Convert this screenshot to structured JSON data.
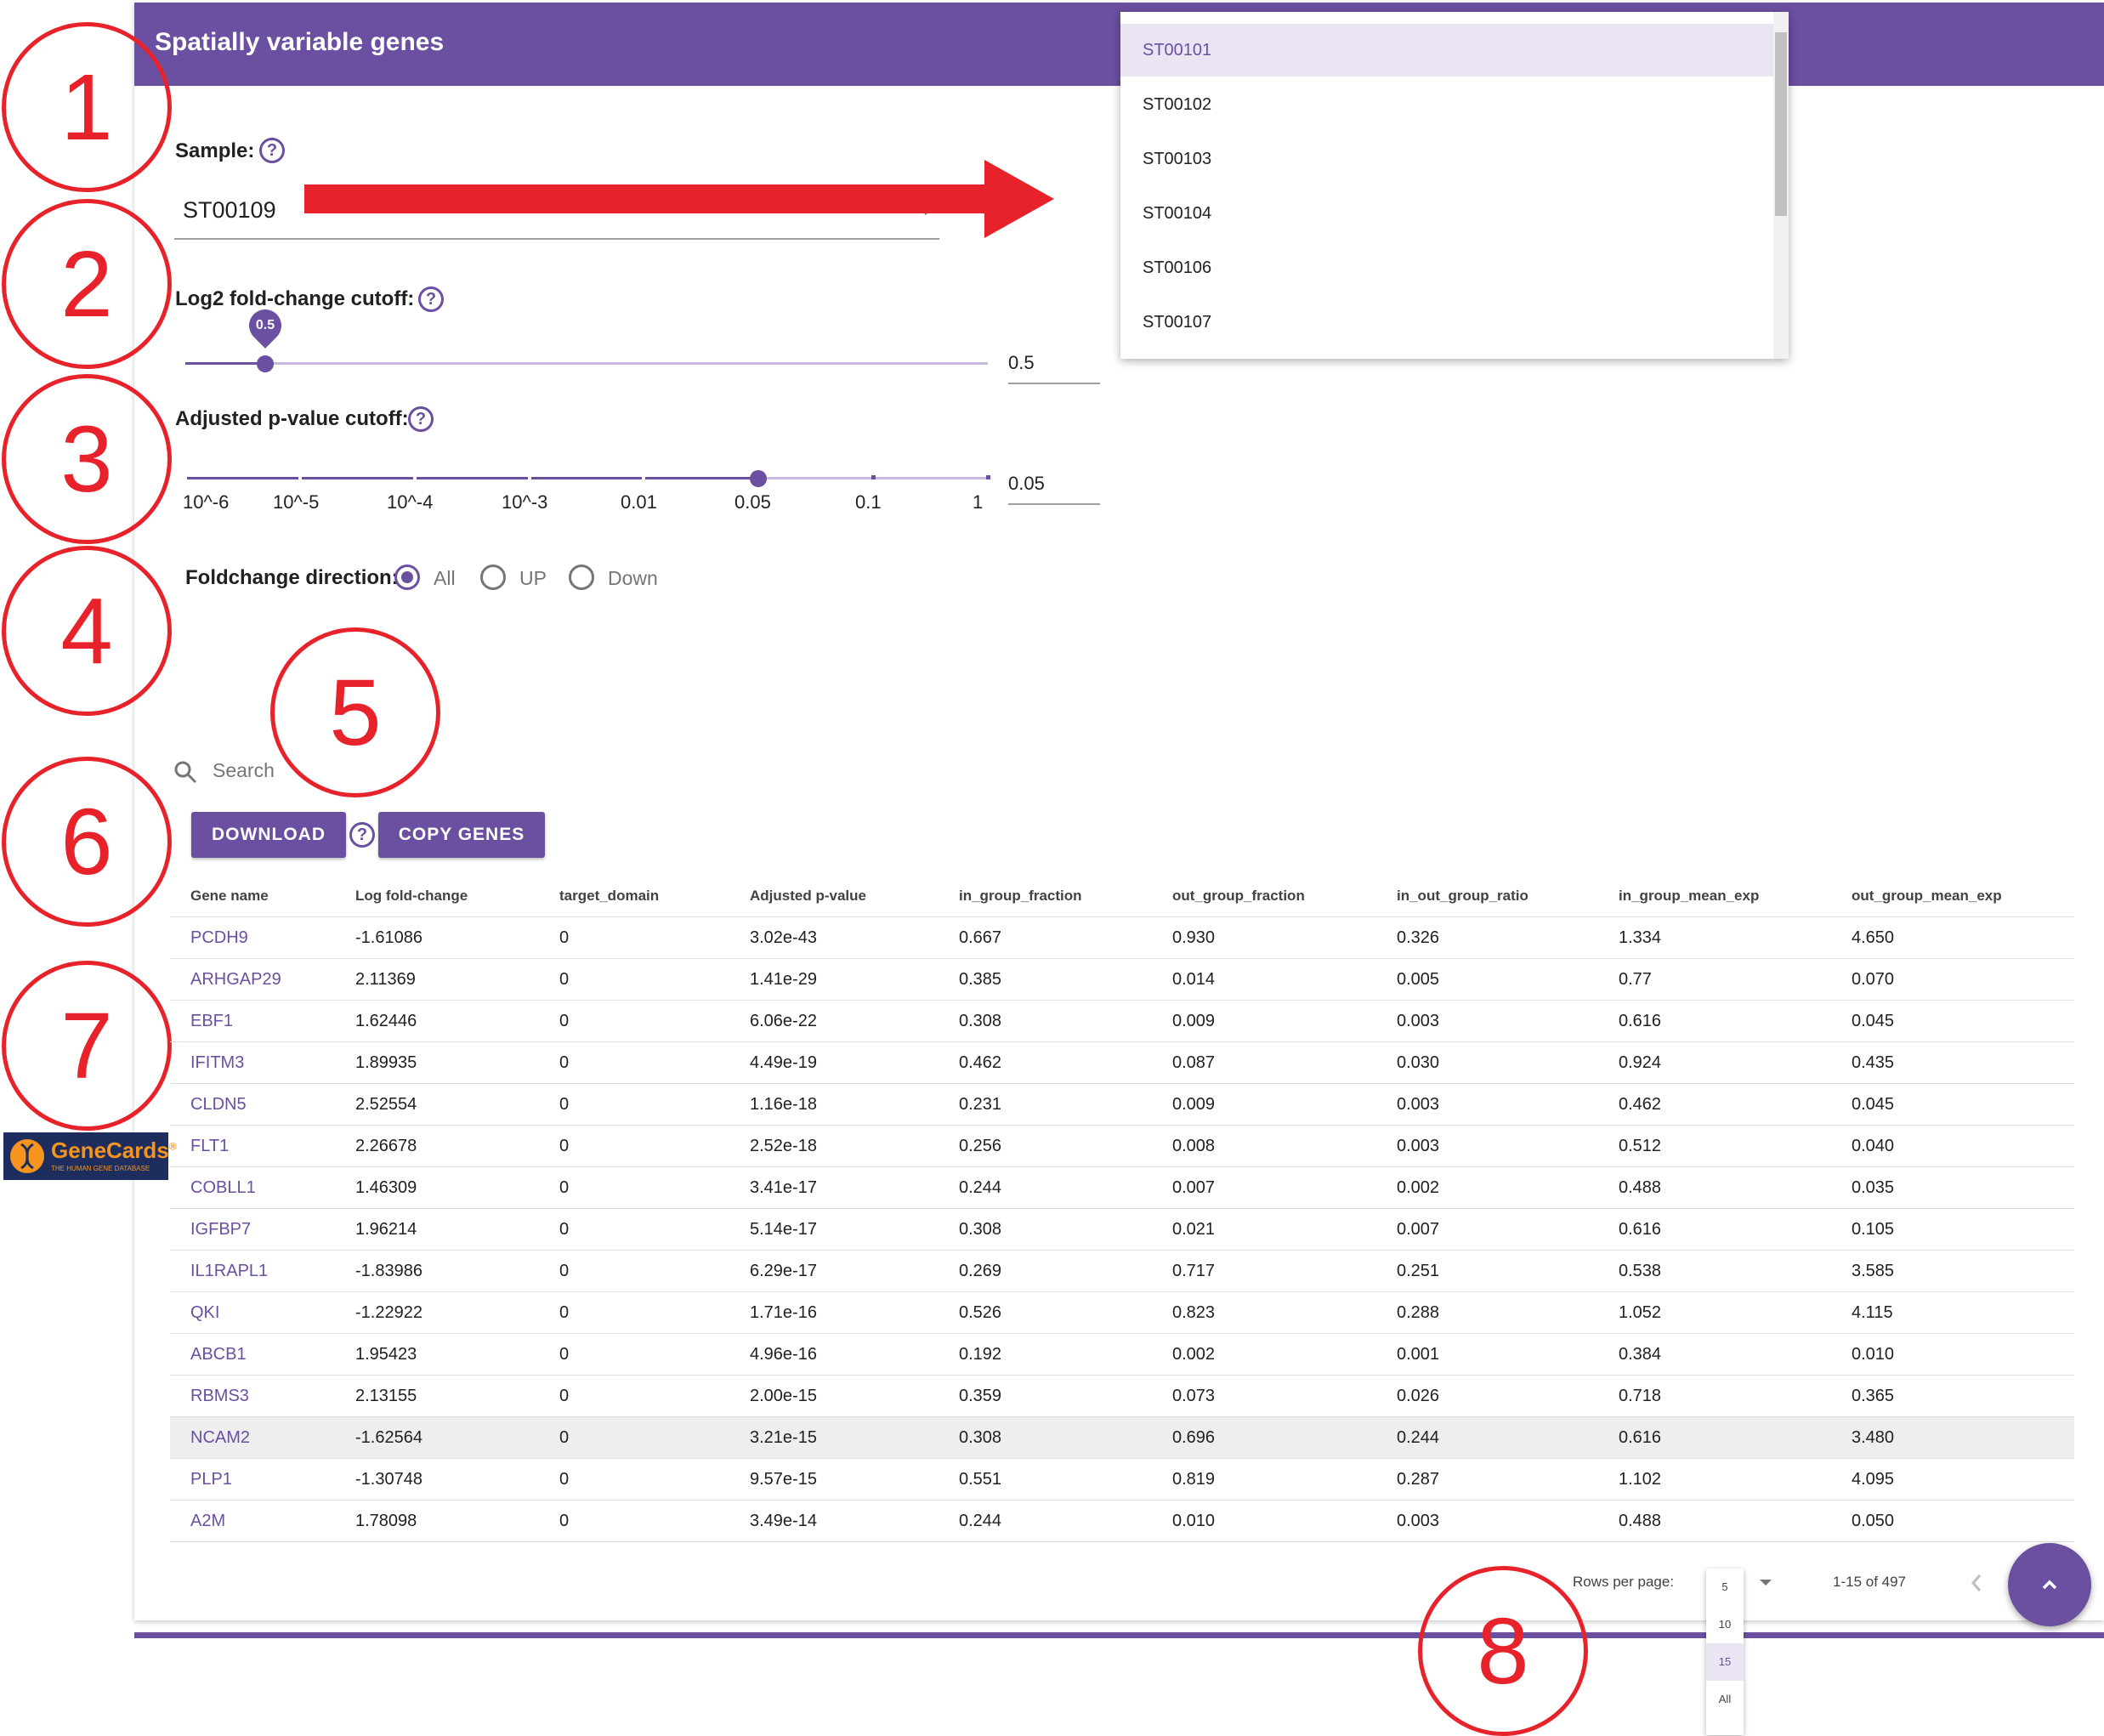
{
  "header": {
    "title": "Spatially variable genes"
  },
  "annotations": [
    "1",
    "2",
    "3",
    "4",
    "5",
    "6",
    "7",
    "8"
  ],
  "sample": {
    "label": "Sample:",
    "help": "?",
    "value": "ST00109",
    "options": [
      "ST00101",
      "ST00102",
      "ST00103",
      "ST00104",
      "ST00106",
      "ST00107"
    ],
    "selected_option": "ST00101"
  },
  "log2fc": {
    "label": "Log2 fold-change cutoff:",
    "help": "?",
    "bubble": "0.5",
    "value": "0.5",
    "slider_fraction": 0.1
  },
  "pvalue": {
    "label": "Adjusted p-value cutoff:",
    "help": "?",
    "ticks": [
      "10^-6",
      "10^-5",
      "10^-4",
      "10^-3",
      "0.01",
      "0.05",
      "0.1",
      "1"
    ],
    "selected_tick": "0.05",
    "value": "0.05"
  },
  "direction": {
    "label": "Foldchange direction:",
    "options": [
      "All",
      "UP",
      "Down"
    ],
    "selected": "All"
  },
  "search": {
    "placeholder": "Search"
  },
  "buttons": {
    "download": "DOWNLOAD",
    "download_help": "?",
    "copy": "COPY GENES"
  },
  "table": {
    "columns": [
      "Gene name",
      "Log fold-change",
      "target_domain",
      "Adjusted p-value",
      "in_group_fraction",
      "out_group_fraction",
      "in_out_group_ratio",
      "in_group_mean_exp",
      "out_group_mean_exp"
    ],
    "rows": [
      [
        "PCDH9",
        "-1.61086",
        "0",
        "3.02e-43",
        "0.667",
        "0.930",
        "0.326",
        "1.334",
        "4.650"
      ],
      [
        "ARHGAP29",
        "2.11369",
        "0",
        "1.41e-29",
        "0.385",
        "0.014",
        "0.005",
        "0.77",
        "0.070"
      ],
      [
        "EBF1",
        "1.62446",
        "0",
        "6.06e-22",
        "0.308",
        "0.009",
        "0.003",
        "0.616",
        "0.045"
      ],
      [
        "IFITM3",
        "1.89935",
        "0",
        "4.49e-19",
        "0.462",
        "0.087",
        "0.030",
        "0.924",
        "0.435"
      ],
      [
        "CLDN5",
        "2.52554",
        "0",
        "1.16e-18",
        "0.231",
        "0.009",
        "0.003",
        "0.462",
        "0.045"
      ],
      [
        "FLT1",
        "2.26678",
        "0",
        "2.52e-18",
        "0.256",
        "0.008",
        "0.003",
        "0.512",
        "0.040"
      ],
      [
        "COBLL1",
        "1.46309",
        "0",
        "3.41e-17",
        "0.244",
        "0.007",
        "0.002",
        "0.488",
        "0.035"
      ],
      [
        "IGFBP7",
        "1.96214",
        "0",
        "5.14e-17",
        "0.308",
        "0.021",
        "0.007",
        "0.616",
        "0.105"
      ],
      [
        "IL1RAPL1",
        "-1.83986",
        "0",
        "6.29e-17",
        "0.269",
        "0.717",
        "0.251",
        "0.538",
        "3.585"
      ],
      [
        "QKI",
        "-1.22922",
        "0",
        "1.71e-16",
        "0.526",
        "0.823",
        "0.288",
        "1.052",
        "4.115"
      ],
      [
        "ABCB1",
        "1.95423",
        "0",
        "4.96e-16",
        "0.192",
        "0.002",
        "0.001",
        "0.384",
        "0.010"
      ],
      [
        "RBMS3",
        "2.13155",
        "0",
        "2.00e-15",
        "0.359",
        "0.073",
        "0.026",
        "0.718",
        "0.365"
      ],
      [
        "NCAM2",
        "-1.62564",
        "0",
        "3.21e-15",
        "0.308",
        "0.696",
        "0.244",
        "0.616",
        "3.480"
      ],
      [
        "PLP1",
        "-1.30748",
        "0",
        "9.57e-15",
        "0.551",
        "0.819",
        "0.287",
        "1.102",
        "4.095"
      ],
      [
        "A2M",
        "1.78098",
        "0",
        "3.49e-14",
        "0.244",
        "0.010",
        "0.003",
        "0.488",
        "0.050"
      ]
    ],
    "highlighted_row": "NCAM2"
  },
  "pagination": {
    "rows_per_page_label": "Rows per page:",
    "rows_per_page_options": [
      "5",
      "10",
      "15",
      "All"
    ],
    "selected_rows_per_page": "15",
    "range": "1-15 of 497"
  },
  "genecards": {
    "name": "GeneCards",
    "mark": "®",
    "subtitle": "THE HUMAN GENE DATABASE"
  },
  "colors": {
    "primary": "#6b4fa0",
    "annotation": "#e8222a",
    "selected_bg": "#ebe5f3"
  }
}
